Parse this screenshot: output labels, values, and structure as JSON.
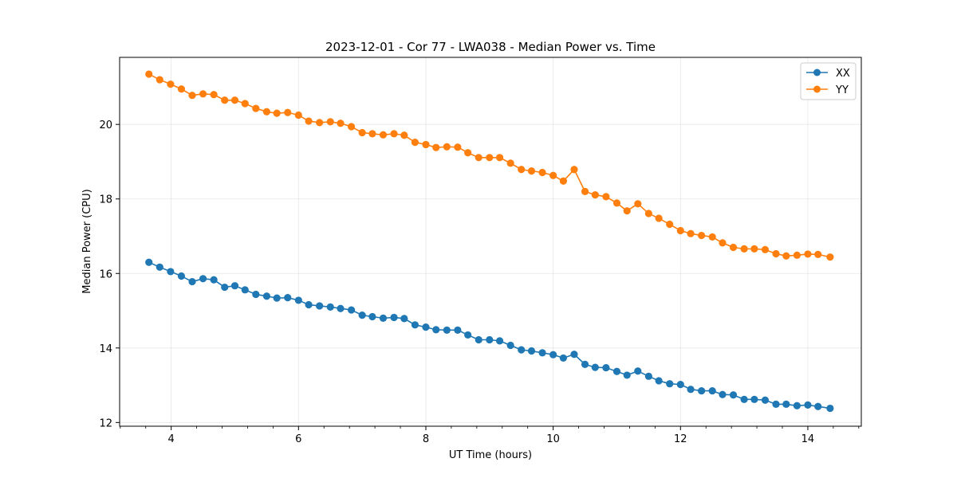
{
  "chart_data": {
    "type": "line",
    "title": "2023-12-01 - Cor 77 - LWA038 - Median Power vs. Time",
    "xlabel": "UT Time (hours)",
    "ylabel": "Median Power (CPU)",
    "xlim": [
      3.19,
      14.84
    ],
    "ylim": [
      11.9,
      21.8
    ],
    "xticks": [
      4,
      6,
      8,
      10,
      12,
      14
    ],
    "yticks": [
      12,
      14,
      16,
      18,
      20
    ],
    "grid": true,
    "legend_position": "top-right",
    "x": [
      3.65,
      3.82,
      3.99,
      4.16,
      4.33,
      4.5,
      4.67,
      4.84,
      5.0,
      5.16,
      5.33,
      5.5,
      5.66,
      5.83,
      6.0,
      6.16,
      6.33,
      6.5,
      6.66,
      6.83,
      7.0,
      7.16,
      7.33,
      7.5,
      7.66,
      7.83,
      8.0,
      8.16,
      8.33,
      8.5,
      8.66,
      8.83,
      9.0,
      9.16,
      9.33,
      9.5,
      9.66,
      9.83,
      10.0,
      10.16,
      10.33,
      10.5,
      10.66,
      10.83,
      11.0,
      11.16,
      11.33,
      11.5,
      11.66,
      11.83,
      12.0,
      12.16,
      12.33,
      12.5,
      12.66,
      12.83,
      13.0,
      13.16,
      13.33,
      13.5,
      13.66,
      13.83,
      14.0,
      14.16,
      14.35
    ],
    "series": [
      {
        "name": "XX",
        "color": "#1f77b4",
        "values": [
          16.3,
          16.17,
          16.05,
          15.93,
          15.78,
          15.86,
          15.83,
          15.63,
          15.67,
          15.56,
          15.44,
          15.39,
          15.34,
          15.35,
          15.28,
          15.16,
          15.13,
          15.1,
          15.06,
          15.02,
          14.88,
          14.84,
          14.8,
          14.82,
          14.79,
          14.62,
          14.56,
          14.49,
          14.48,
          14.48,
          14.35,
          14.22,
          14.22,
          14.19,
          14.07,
          13.95,
          13.92,
          13.87,
          13.82,
          13.73,
          13.83,
          13.56,
          13.48,
          13.47,
          13.37,
          13.27,
          13.38,
          13.24,
          13.12,
          13.04,
          13.02,
          12.89,
          12.85,
          12.85,
          12.75,
          12.74,
          12.62,
          12.62,
          12.6,
          12.49,
          12.49,
          12.45,
          12.47,
          12.43,
          12.38
        ]
      },
      {
        "name": "YY",
        "color": "#ff7f0e",
        "values": [
          21.35,
          21.2,
          21.08,
          20.95,
          20.78,
          20.82,
          20.8,
          20.65,
          20.65,
          20.56,
          20.43,
          20.34,
          20.3,
          20.32,
          20.25,
          20.09,
          20.05,
          20.07,
          20.03,
          19.94,
          19.78,
          19.75,
          19.72,
          19.75,
          19.71,
          19.52,
          19.46,
          19.38,
          19.4,
          19.39,
          19.24,
          19.11,
          19.11,
          19.11,
          18.96,
          18.79,
          18.75,
          18.71,
          18.63,
          18.48,
          18.79,
          18.2,
          18.11,
          18.06,
          17.89,
          17.68,
          17.87,
          17.61,
          17.48,
          17.32,
          17.15,
          17.07,
          17.02,
          16.98,
          16.82,
          16.7,
          16.66,
          16.66,
          16.64,
          16.53,
          16.47,
          16.49,
          16.52,
          16.51,
          16.44
        ]
      }
    ]
  }
}
